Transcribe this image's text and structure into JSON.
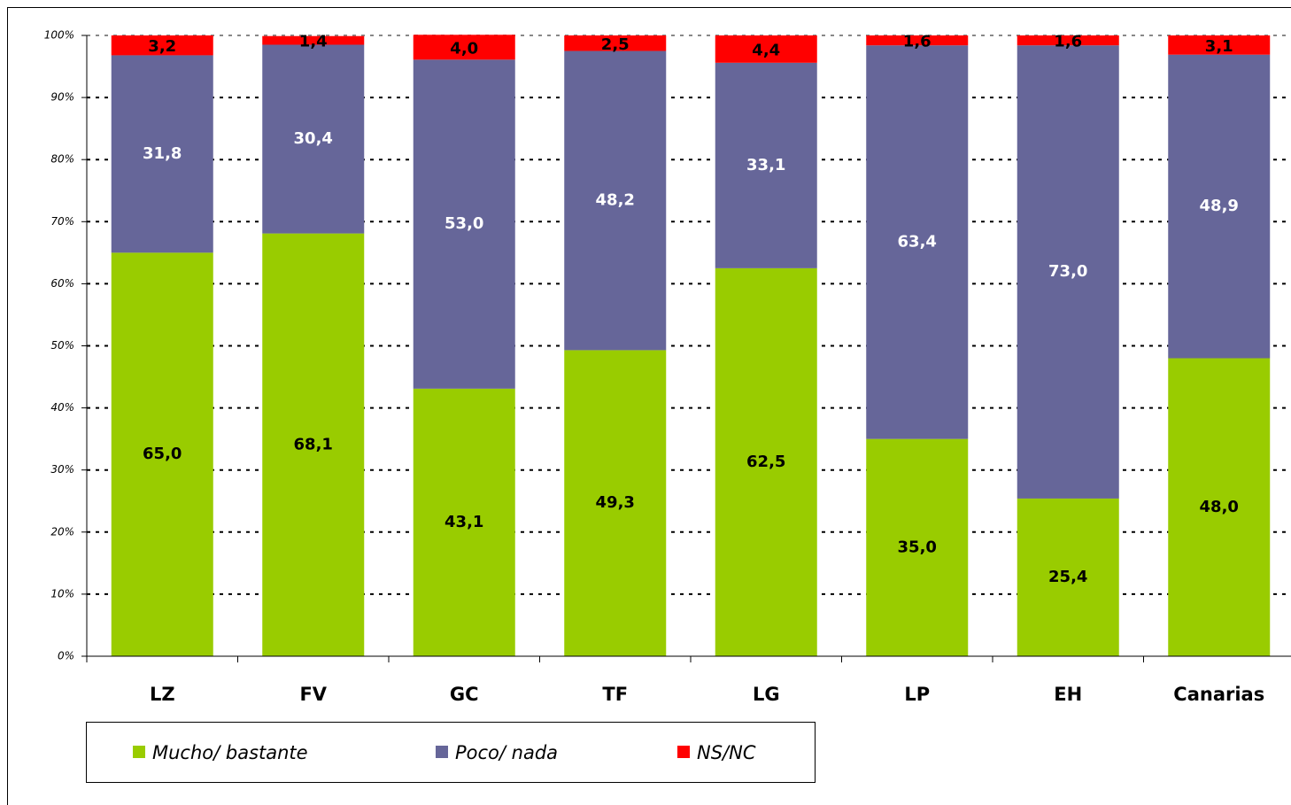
{
  "chart_data": {
    "type": "stacked_bar",
    "categories": [
      "LZ",
      "FV",
      "GC",
      "TF",
      "LG",
      "LP",
      "EH",
      "Canarias"
    ],
    "series": [
      {
        "name": "Mucho/ bastante",
        "color": "#99cc00",
        "values": [
          65.0,
          68.1,
          43.1,
          49.3,
          62.5,
          35.0,
          25.4,
          48.0
        ],
        "value_labels": [
          "65,0",
          "68,1",
          "43,1",
          "49,3",
          "62,5",
          "35,0",
          "25,4",
          "48,0"
        ]
      },
      {
        "name": "Poco/ nada",
        "color": "#666699",
        "values": [
          31.8,
          30.4,
          53.0,
          48.2,
          33.1,
          63.4,
          73.0,
          48.9
        ],
        "value_labels": [
          "31,8",
          "30,4",
          "53,0",
          "48,2",
          "33,1",
          "63,4",
          "73,0",
          "48,9"
        ]
      },
      {
        "name": "NS/NC",
        "color": "#ff0000",
        "values": [
          3.2,
          1.4,
          4.0,
          2.5,
          4.4,
          1.6,
          1.6,
          3.1
        ],
        "value_labels": [
          "3,2",
          "1,4",
          "4,0",
          "2,5",
          "4,4",
          "1,6",
          "1,6",
          "3,1"
        ]
      }
    ],
    "ylim": [
      0,
      100
    ],
    "yticks": [
      {
        "value": 0,
        "label": "0%"
      },
      {
        "value": 10,
        "label": "10%"
      },
      {
        "value": 20,
        "label": "20%"
      },
      {
        "value": 30,
        "label": "30%"
      },
      {
        "value": 40,
        "label": "40%"
      },
      {
        "value": 50,
        "label": "50%"
      },
      {
        "value": 60,
        "label": "60%"
      },
      {
        "value": 70,
        "label": "70%"
      },
      {
        "value": 80,
        "label": "80%"
      },
      {
        "value": 90,
        "label": "90%"
      },
      {
        "value": 100,
        "label": "100%"
      }
    ],
    "grid": true
  }
}
